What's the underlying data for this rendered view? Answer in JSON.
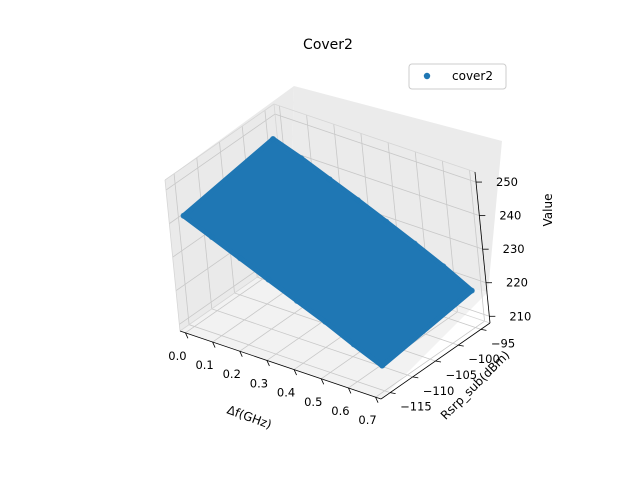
{
  "chart_data": {
    "type": "scatter",
    "projection": "3d",
    "title": "Cover2",
    "xlabel": "Δf(GHz)",
    "ylabel": "Rsrp_sub(dBm)",
    "zlabel": "Value",
    "xlim": [
      -0.02,
      0.72
    ],
    "ylim": [
      -117,
      -93
    ],
    "zlim": [
      208,
      253
    ],
    "x_ticks": [
      "0.0",
      "0.1",
      "0.2",
      "0.3",
      "0.4",
      "0.5",
      "0.6",
      "0.7"
    ],
    "y_ticks": [
      "−115",
      "−110",
      "−105",
      "−100",
      "−95"
    ],
    "z_ticks": [
      "210",
      "220",
      "230",
      "240",
      "250"
    ],
    "grid": true,
    "legend_position": "upper right",
    "series": [
      {
        "name": "cover2",
        "color": "#1f77b4",
        "surface_shape": "thin sheet of dense points spanning x from 0.0 to 0.7 and y from -115 to -95, value falling roughly linearly with x",
        "edges": {
          "low_rsrp_edge": {
            "x": [
              0.0,
              0.1,
              0.2,
              0.3,
              0.4,
              0.5,
              0.6,
              0.7
            ],
            "rsrp": [
              -115,
              -115,
              -115,
              -115,
              -115,
              -115,
              -115,
              -115
            ],
            "value": [
              241.0,
              237.4,
              233.8,
              230.2,
              226.6,
              223.1,
              219.1,
              215.5
            ]
          },
          "high_rsrp_edge": {
            "x": [
              0.0,
              0.1,
              0.2,
              0.3,
              0.4,
              0.5,
              0.6,
              0.7
            ],
            "rsrp": [
              -95,
              -95,
              -95,
              -95,
              -95,
              -95,
              -95,
              -95
            ],
            "value": [
              245.0,
              242.0,
              238.5,
              235.0,
              231.3,
              227.5,
              223.5,
              219.0
            ]
          }
        }
      }
    ]
  }
}
